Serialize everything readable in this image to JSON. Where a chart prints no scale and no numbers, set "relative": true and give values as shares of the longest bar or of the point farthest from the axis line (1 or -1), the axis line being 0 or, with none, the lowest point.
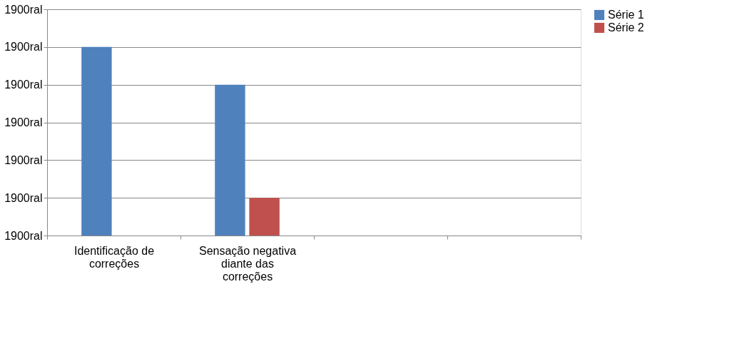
{
  "chart_data": {
    "type": "bar",
    "categories": [
      "Identificação de correções",
      "Sensação negativa diante das correções",
      null,
      null
    ],
    "series": [
      {
        "name": "Série 1",
        "color": "#4f81bd",
        "values": [
          1,
          0.8,
          null,
          null
        ]
      },
      {
        "name": "Série 2",
        "color": "#c0504d",
        "values": [
          null,
          0.2,
          null,
          null
        ]
      }
    ],
    "relative": true,
    "annotations": [
      "1900ral",
      "1900ral",
      "1900ral",
      "1900ral",
      "1900ral",
      "1900ral",
      "1900ral"
    ],
    "grid": "y",
    "legend": "right"
  }
}
